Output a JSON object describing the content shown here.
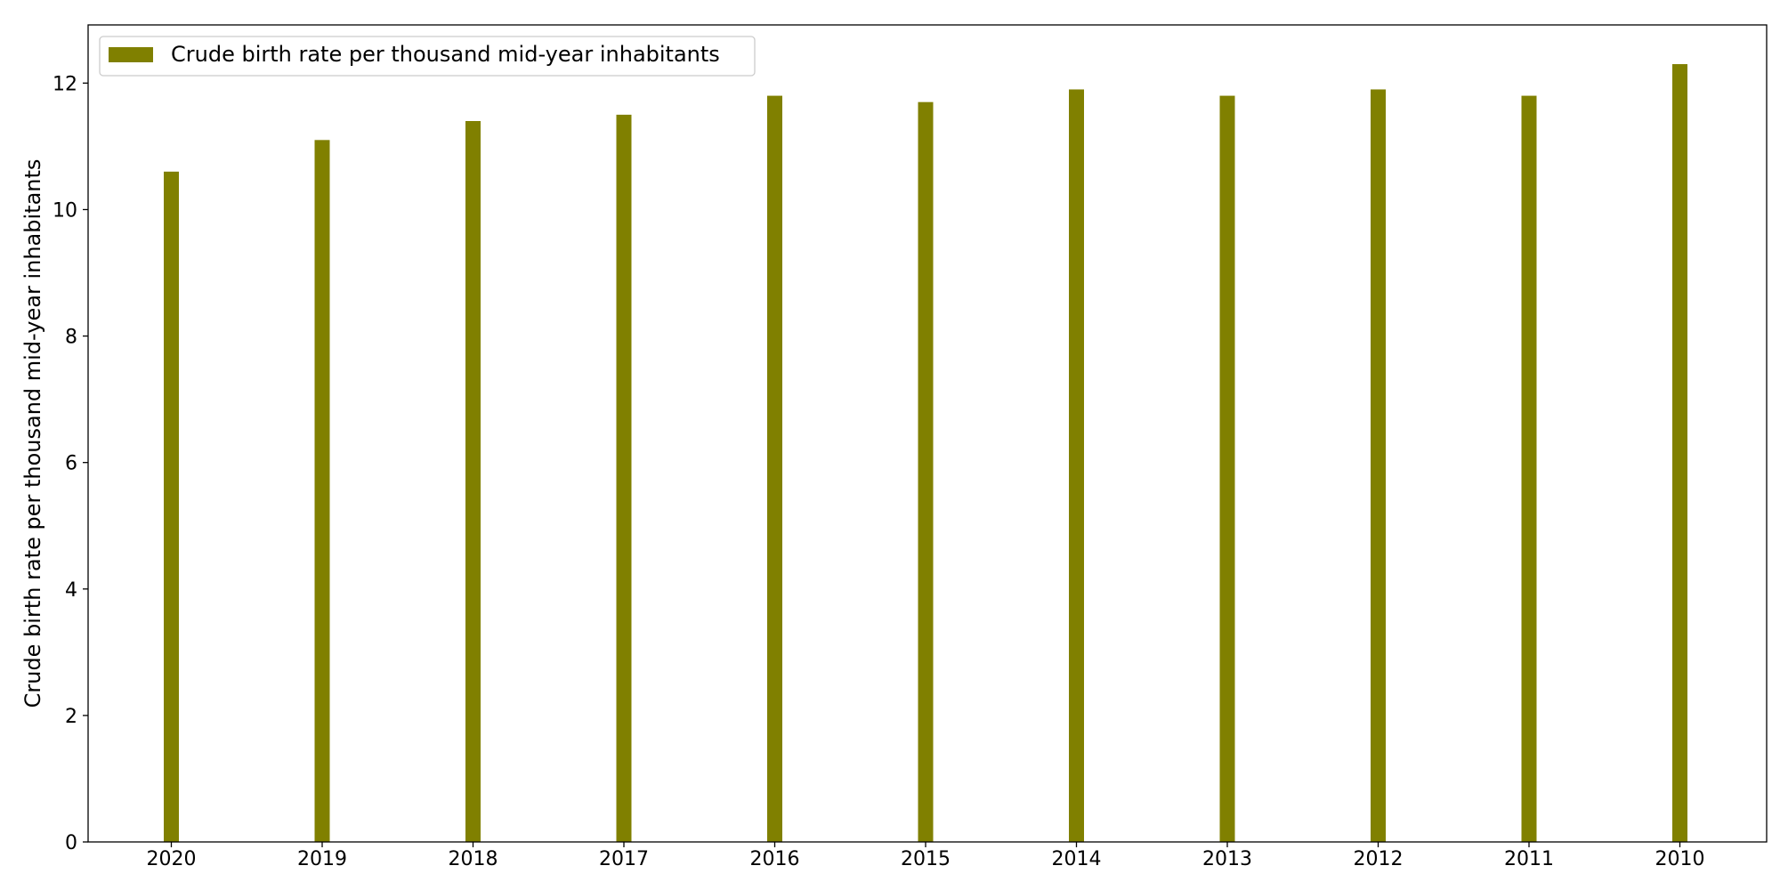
{
  "chart_data": {
    "type": "bar",
    "categories": [
      "2020",
      "2019",
      "2018",
      "2017",
      "2016",
      "2015",
      "2014",
      "2013",
      "2012",
      "2011",
      "2010"
    ],
    "series": [
      {
        "name": "Crude birth rate per thousand mid-year inhabitants",
        "values": [
          10.6,
          11.1,
          11.4,
          11.5,
          11.8,
          11.7,
          11.9,
          11.8,
          11.9,
          11.8,
          12.3
        ],
        "color": "#808000"
      }
    ],
    "title": "",
    "xlabel": "",
    "ylabel": "Crude birth rate per thousand mid-year inhabitants",
    "ylim": [
      0,
      12.92
    ],
    "yticks": [
      0,
      2,
      4,
      6,
      8,
      10,
      12
    ],
    "grid": false,
    "legend_position": "top-left"
  }
}
